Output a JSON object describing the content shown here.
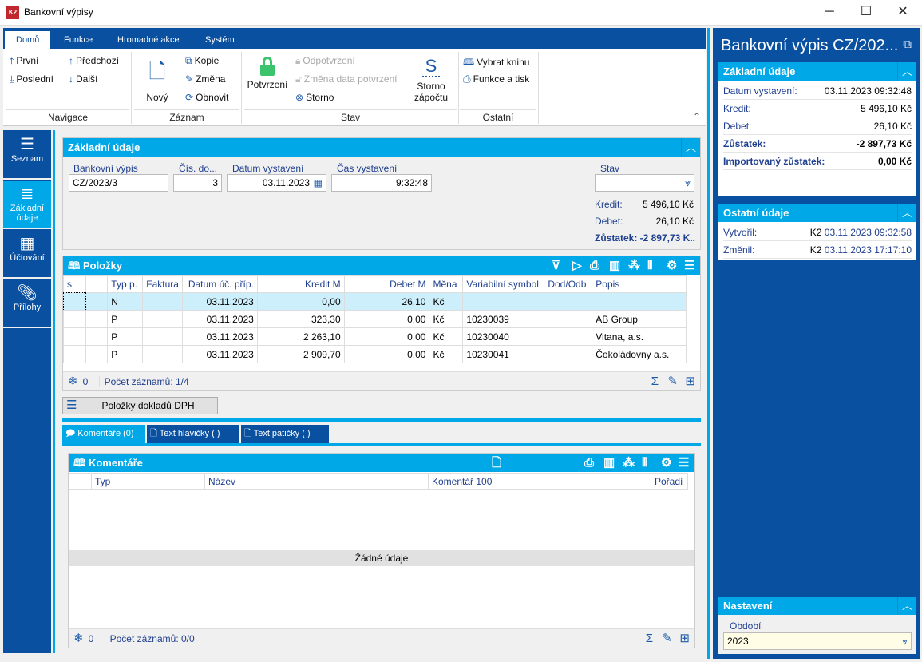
{
  "window": {
    "title": "Bankovní výpisy",
    "logo": "K2",
    "minimize": "─",
    "maximize": "☐",
    "close": "✕"
  },
  "ribbon": {
    "tabs": [
      "Domů",
      "Funkce",
      "Hromadné akce",
      "Systém"
    ],
    "nav": {
      "first": "První",
      "last": "Poslední",
      "prev": "Předchozí",
      "next": "Další",
      "group": "Navigace"
    },
    "record": {
      "new": "Nový",
      "copy": "Kopie",
      "change": "Změna",
      "refresh": "Obnovit",
      "group": "Záznam"
    },
    "state": {
      "confirm": "Potvrzení",
      "unconfirm": "Odpotvrzení",
      "change_date": "Změna data potvrzení",
      "storno": "Storno",
      "storno_offset_1": "Storno",
      "storno_offset_2": "zápočtu",
      "group": "Stav"
    },
    "other": {
      "choose_book": "Vybrat knihu",
      "print": "Funkce a tisk",
      "group": "Ostatní"
    }
  },
  "leftnav": [
    {
      "label": "Seznam"
    },
    {
      "label": "Základní údaje"
    },
    {
      "label": "Účtování"
    },
    {
      "label": "Přílohy"
    }
  ],
  "basic": {
    "title": "Základní údaje",
    "labels": {
      "statement": "Bankovní výpis",
      "doc_no": "Čís. do...",
      "date": "Datum vystavení",
      "time": "Čas vystavení",
      "state": "Stav"
    },
    "values": {
      "statement": "CZ/2023/3",
      "doc_no": "3",
      "date": "03.11.2023",
      "time": "9:32:48",
      "state": ""
    },
    "kredit_label": "Kredit:",
    "kredit": "5 496,10 Kč",
    "debet_label": "Debet:",
    "debet": "26,10 Kč",
    "zustatek_label": "Zůstatek:",
    "zustatek": "-2 897,73 K.."
  },
  "items": {
    "title": "Položky",
    "columns": [
      "s",
      "",
      "Typ p.",
      "Faktura",
      "Datum úč. příp.",
      "Kredit M",
      "Debet M",
      "Měna",
      "Variabilní symbol",
      "Dod/Odb",
      "Popis"
    ],
    "rows": [
      [
        "",
        "",
        "N",
        "",
        "03.11.2023",
        "0,00",
        "26,10",
        "Kč",
        "",
        "",
        ""
      ],
      [
        "",
        "",
        "P",
        "",
        "03.11.2023",
        "323,30",
        "0,00",
        "Kč",
        "10230039",
        "",
        "AB Group"
      ],
      [
        "",
        "",
        "P",
        "",
        "03.11.2023",
        "2 263,10",
        "0,00",
        "Kč",
        "10230040",
        "",
        "Vitana, a.s."
      ],
      [
        "",
        "",
        "P",
        "",
        "03.11.2023",
        "2 909,70",
        "0,00",
        "Kč",
        "10230041",
        "",
        "Čokoládovny a.s."
      ]
    ],
    "filter_count": "0",
    "record_count": "Počet záznamů: 1/4"
  },
  "vat_button": "Položky dokladů DPH",
  "bottom_tabs": [
    "Komentáře (0)",
    "Text hlavičky ( )",
    "Text patičky ( )"
  ],
  "comments": {
    "title": "Komentáře",
    "columns": [
      "Typ",
      "Název",
      "Komentář 100",
      "Pořadí"
    ],
    "empty": "Žádné údaje",
    "filter_count": "0",
    "record_count": "Počet záznamů: 0/0"
  },
  "right": {
    "title": "Bankovní výpis CZ/202...",
    "basic_title": "Základní údaje",
    "basic": [
      {
        "k": "Datum vystavení:",
        "v": "03.11.2023 09:32:48"
      },
      {
        "k": "Kredit:",
        "v": "5 496,10 Kč"
      },
      {
        "k": "Debet:",
        "v": "26,10 Kč"
      },
      {
        "k": "Zůstatek:",
        "v": "-2 897,73 Kč"
      },
      {
        "k": "Importovaný zůstatek:",
        "v": "0,00 Kč"
      }
    ],
    "other_title": "Ostatní údaje",
    "other": [
      {
        "k": "Vytvořil:",
        "user": "K2",
        "v": "03.11.2023 09:32:58"
      },
      {
        "k": "Změnil:",
        "user": "K2",
        "v": "03.11.2023 17:17:10"
      }
    ],
    "settings_title": "Nastavení",
    "period_label": "Období",
    "period": "2023"
  },
  "colors": {
    "dark_blue": "#0a50a1",
    "accent": "#00a8e8",
    "selected_row": "#cdeefb",
    "confirm_green": "#3cc36e"
  }
}
